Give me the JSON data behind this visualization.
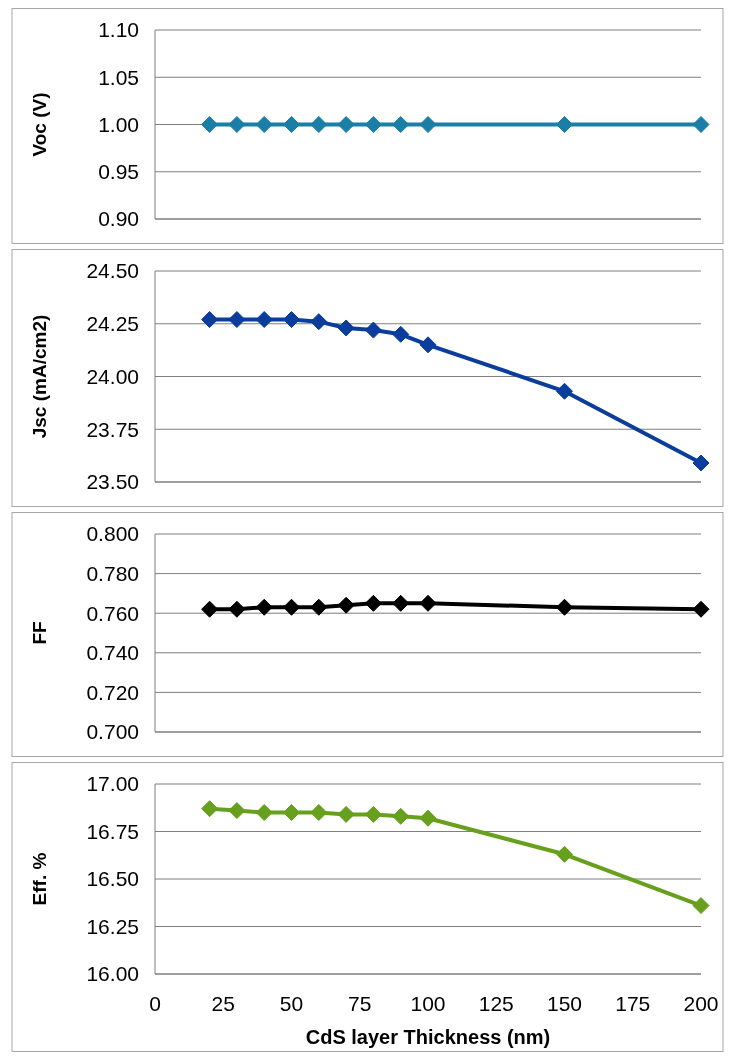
{
  "chart_data": [
    {
      "type": "line",
      "ylabel": "Voc (V)",
      "x": [
        20,
        30,
        40,
        50,
        60,
        70,
        80,
        90,
        100,
        150,
        200
      ],
      "xlim": [
        0,
        200
      ],
      "ylim": [
        0.9,
        1.1
      ],
      "yticks": [
        {
          "value": 0.9,
          "label": "0.90"
        },
        {
          "value": 0.95,
          "label": "0.95"
        },
        {
          "value": 1.0,
          "label": "1.00"
        },
        {
          "value": 1.05,
          "label": "1.05"
        },
        {
          "value": 1.1,
          "label": "1.10"
        }
      ],
      "grid": "y",
      "marker": "diamond",
      "tick_labels": "y",
      "series": [
        {
          "color": "#1a7ea6",
          "values": [
            1.0,
            1.0,
            1.0,
            1.0,
            1.0,
            1.0,
            1.0,
            1.0,
            1.0,
            1.0,
            1.0
          ]
        }
      ]
    },
    {
      "type": "line",
      "ylabel": "Jsc (mA/cm2)",
      "x": [
        20,
        30,
        40,
        50,
        60,
        70,
        80,
        90,
        100,
        150,
        200
      ],
      "xlim": [
        0,
        200
      ],
      "ylim": [
        23.5,
        24.5
      ],
      "yticks": [
        {
          "value": 23.5,
          "label": "23.50"
        },
        23.75,
        {
          "value": 24.0,
          "label": "24.00"
        },
        24.25,
        {
          "value": 24.5,
          "label": "24.50"
        }
      ],
      "grid": "y",
      "marker": "diamond",
      "tick_labels": "y",
      "series": [
        {
          "color": "#0a3d9c",
          "values": [
            24.27,
            24.27,
            24.27,
            24.27,
            24.26,
            24.23,
            24.22,
            24.2,
            24.15,
            23.93,
            23.59
          ]
        }
      ]
    },
    {
      "type": "line",
      "ylabel": "FF",
      "x": [
        20,
        30,
        40,
        50,
        60,
        70,
        80,
        90,
        100,
        150,
        200
      ],
      "xlim": [
        0,
        200
      ],
      "ylim": [
        0.7,
        0.8
      ],
      "yticks": [
        {
          "value": 0.7,
          "label": "0.700"
        },
        {
          "value": 0.72,
          "label": "0.720"
        },
        {
          "value": 0.74,
          "label": "0.740"
        },
        {
          "value": 0.76,
          "label": "0.760"
        },
        {
          "value": 0.78,
          "label": "0.780"
        },
        {
          "value": 0.8,
          "label": "0.800"
        }
      ],
      "grid": "y",
      "marker": "diamond",
      "tick_labels": "y",
      "series": [
        {
          "color": "#000000",
          "values": [
            0.762,
            0.762,
            0.763,
            0.763,
            0.763,
            0.764,
            0.765,
            0.765,
            0.765,
            0.763,
            0.762
          ]
        }
      ]
    },
    {
      "type": "line",
      "ylabel": "Eff. %",
      "xlabel": "CdS layer Thickness (nm)",
      "x": [
        20,
        30,
        40,
        50,
        60,
        70,
        80,
        90,
        100,
        150,
        200
      ],
      "xlim": [
        0,
        200
      ],
      "xticks": [
        0,
        25,
        50,
        75,
        100,
        125,
        150,
        175,
        200
      ],
      "ylim": [
        16.0,
        17.0
      ],
      "yticks": [
        {
          "value": 16.0,
          "label": "16.00"
        },
        16.25,
        {
          "value": 16.5,
          "label": "16.50"
        },
        16.75,
        {
          "value": 17.0,
          "label": "17.00"
        }
      ],
      "grid": "y",
      "marker": "diamond",
      "series": [
        {
          "color": "#66a01c",
          "values": [
            16.87,
            16.86,
            16.85,
            16.85,
            16.85,
            16.84,
            16.84,
            16.83,
            16.82,
            16.63,
            16.36
          ]
        }
      ]
    }
  ]
}
